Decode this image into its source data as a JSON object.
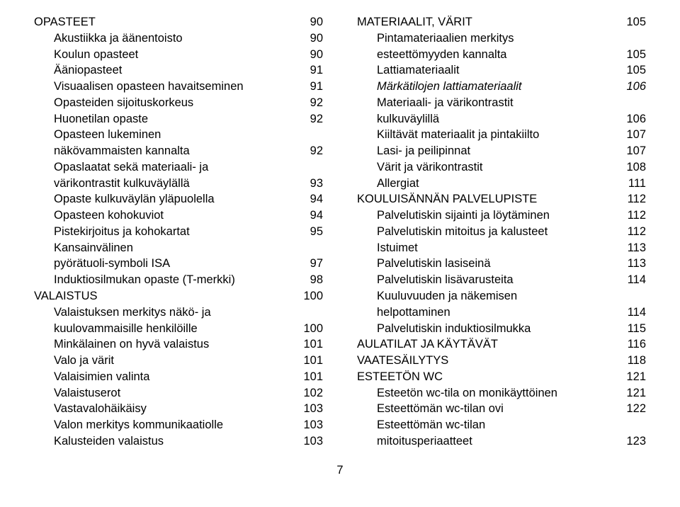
{
  "left": [
    {
      "label": "OPASTEET",
      "page": "90",
      "indent": "section",
      "italic": false
    },
    {
      "label": "Akustiikka ja äänentoisto",
      "page": "90",
      "indent": "sub",
      "italic": false
    },
    {
      "label": "Koulun opasteet",
      "page": "90",
      "indent": "sub",
      "italic": false
    },
    {
      "label": "Ääniopasteet",
      "page": "91",
      "indent": "sub",
      "italic": false
    },
    {
      "label": "Visuaalisen opasteen havaitseminen",
      "page": "91",
      "indent": "sub",
      "italic": false
    },
    {
      "label": "Opasteiden sijoituskorkeus",
      "page": "92",
      "indent": "sub",
      "italic": false
    },
    {
      "label": "Huonetilan opaste",
      "page": "92",
      "indent": "sub",
      "italic": false
    },
    {
      "label": "Opasteen lukeminen",
      "page": "",
      "indent": "sub",
      "italic": false
    },
    {
      "label": "näkövammaisten kannalta",
      "page": "92",
      "indent": "sub",
      "italic": false
    },
    {
      "label": "Opaslaatat sekä materiaali- ja",
      "page": "",
      "indent": "sub",
      "italic": false
    },
    {
      "label": "värikontrastit kulkuväylällä",
      "page": "93",
      "indent": "sub",
      "italic": false
    },
    {
      "label": "Opaste kulkuväylän yläpuolella",
      "page": "94",
      "indent": "sub",
      "italic": false
    },
    {
      "label": "Opasteen kohokuviot",
      "page": "94",
      "indent": "sub",
      "italic": false
    },
    {
      "label": "Pistekirjoitus ja kohokartat",
      "page": "95",
      "indent": "sub",
      "italic": false
    },
    {
      "label": "Kansainvälinen",
      "page": "",
      "indent": "sub",
      "italic": false
    },
    {
      "label": "pyörätuoli-symboli ISA",
      "page": "97",
      "indent": "sub",
      "italic": false
    },
    {
      "label": "Induktiosilmukan opaste (T-merkki)",
      "page": "98",
      "indent": "sub",
      "italic": false
    },
    {
      "label": "VALAISTUS",
      "page": "100",
      "indent": "section",
      "italic": false
    },
    {
      "label": "Valaistuksen merkitys näkö- ja",
      "page": "",
      "indent": "sub",
      "italic": false
    },
    {
      "label": "kuulovammaisille henkilöille",
      "page": "100",
      "indent": "sub",
      "italic": false
    },
    {
      "label": "Minkälainen on hyvä valaistus",
      "page": "101",
      "indent": "sub",
      "italic": false
    },
    {
      "label": "Valo ja värit",
      "page": "101",
      "indent": "sub",
      "italic": false
    },
    {
      "label": "Valaisimien valinta",
      "page": "101",
      "indent": "sub",
      "italic": false
    },
    {
      "label": "Valaistuserot",
      "page": "102",
      "indent": "sub",
      "italic": false
    },
    {
      "label": "Vastavalohäikäisy",
      "page": "103",
      "indent": "sub",
      "italic": false
    },
    {
      "label": "Valon merkitys kommunikaatiolle",
      "page": "103",
      "indent": "sub",
      "italic": false
    },
    {
      "label": "Kalusteiden valaistus",
      "page": "103",
      "indent": "sub",
      "italic": false
    }
  ],
  "right": [
    {
      "label": "MATERIAALIT, VÄRIT",
      "page": "105",
      "indent": "section",
      "italic": false
    },
    {
      "label": "Pintamateriaalien merkitys",
      "page": "",
      "indent": "sub",
      "italic": false
    },
    {
      "label": "esteettömyyden kannalta",
      "page": "105",
      "indent": "sub",
      "italic": false
    },
    {
      "label": "Lattiamateriaalit",
      "page": "105",
      "indent": "sub",
      "italic": false
    },
    {
      "label": "Märkätilojen lattiamateriaalit",
      "page": "106",
      "indent": "sub",
      "italic": true
    },
    {
      "label": "Materiaali- ja värikontrastit",
      "page": "",
      "indent": "sub",
      "italic": false
    },
    {
      "label": "kulkuväylillä",
      "page": "106",
      "indent": "sub",
      "italic": false
    },
    {
      "label": "Kiiltävät materiaalit ja pintakiilto",
      "page": "107",
      "indent": "sub",
      "italic": false
    },
    {
      "label": "Lasi- ja peilipinnat",
      "page": "107",
      "indent": "sub",
      "italic": false
    },
    {
      "label": "Värit ja värikontrastit",
      "page": "108",
      "indent": "sub",
      "italic": false
    },
    {
      "label": "Allergiat",
      "page": "111",
      "indent": "sub",
      "italic": false
    },
    {
      "label": "KOULUISÄNNÄN PALVELUPISTE",
      "page": "112",
      "indent": "section",
      "italic": false
    },
    {
      "label": "Palvelutiskin sijainti ja löytäminen",
      "page": "112",
      "indent": "sub",
      "italic": false
    },
    {
      "label": "Palvelutiskin mitoitus ja kalusteet",
      "page": "112",
      "indent": "sub",
      "italic": false
    },
    {
      "label": "Istuimet",
      "page": "113",
      "indent": "sub",
      "italic": false
    },
    {
      "label": "Palvelutiskin lasiseinä",
      "page": "113",
      "indent": "sub",
      "italic": false
    },
    {
      "label": "Palvelutiskin lisävarusteita",
      "page": "114",
      "indent": "sub",
      "italic": false
    },
    {
      "label": "Kuuluvuuden ja näkemisen",
      "page": "",
      "indent": "sub",
      "italic": false
    },
    {
      "label": "helpottaminen",
      "page": "114",
      "indent": "sub",
      "italic": false
    },
    {
      "label": "Palvelutiskin induktiosilmukka",
      "page": "115",
      "indent": "sub",
      "italic": false
    },
    {
      "label": "AULATILAT JA KÄYTÄVÄT",
      "page": "116",
      "indent": "section",
      "italic": false
    },
    {
      "label": "VAATESÄILYTYS",
      "page": "118",
      "indent": "section",
      "italic": false
    },
    {
      "label": "ESTEETÖN WC",
      "page": "121",
      "indent": "section",
      "italic": false
    },
    {
      "label": "Esteetön wc-tila on monikäyttöinen",
      "page": "121",
      "indent": "sub",
      "italic": false
    },
    {
      "label": "Esteettömän wc-tilan ovi",
      "page": "122",
      "indent": "sub",
      "italic": false
    },
    {
      "label": "Esteettömän wc-tilan",
      "page": "",
      "indent": "sub",
      "italic": false
    },
    {
      "label": "mitoitusperiaatteet",
      "page": "123",
      "indent": "sub",
      "italic": false
    }
  ],
  "pageNumber": "7"
}
